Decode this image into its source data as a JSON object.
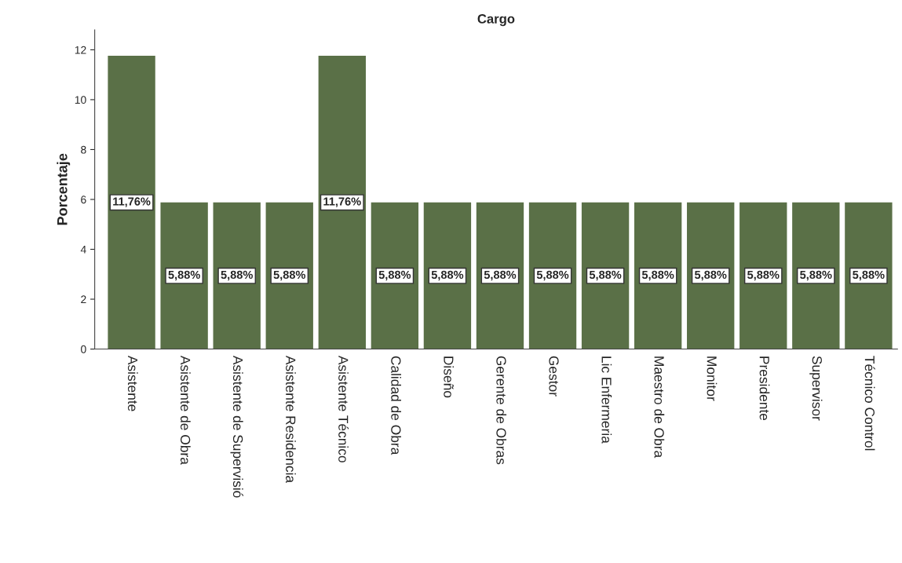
{
  "chart_data": {
    "type": "bar",
    "title": "Cargo",
    "ylabel": "Porcentaje",
    "categories": [
      "Asistente",
      "Asistente de Obra",
      "Asistente de Supervisió",
      "Asistente Residencia",
      "Asistente Técnico",
      "Calidad de Obra",
      "Diseño",
      "Gerente de Obras",
      "Gestor",
      "Lic Enfermeria",
      "Maestro de Obra",
      "Monitor",
      "Presidente",
      "Supervisor",
      "Técnico Control"
    ],
    "values": [
      11.76,
      5.88,
      5.88,
      5.88,
      11.76,
      5.88,
      5.88,
      5.88,
      5.88,
      5.88,
      5.88,
      5.88,
      5.88,
      5.88,
      5.88
    ],
    "value_labels": [
      "11,76%",
      "5,88%",
      "5,88%",
      "5,88%",
      "11,76%",
      "5,88%",
      "5,88%",
      "5,88%",
      "5,88%",
      "5,88%",
      "5,88%",
      "5,88%",
      "5,88%",
      "5,88%",
      "5,88%"
    ],
    "color": "#5a7047",
    "ylim": [
      0,
      12.8
    ],
    "yticks": [
      0,
      2,
      4,
      6,
      8,
      10,
      12
    ]
  }
}
